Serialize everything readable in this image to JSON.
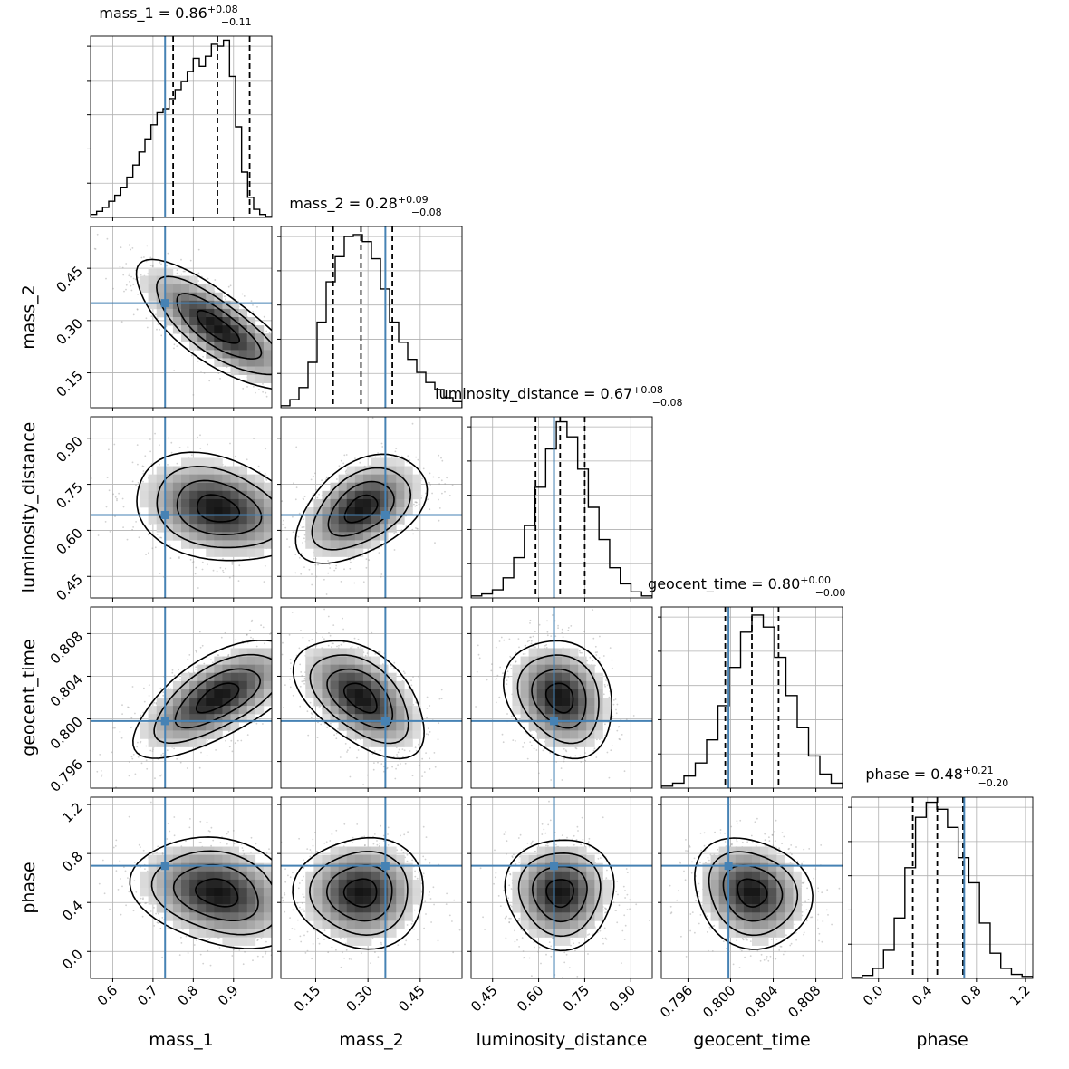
{
  "chart_data": {
    "type": "corner",
    "parameters": [
      {
        "name": "mass_1",
        "axis_label": "mass_1",
        "range": [
          0.545,
          0.995
        ],
        "ticks": [
          0.6,
          0.7,
          0.8,
          0.9
        ],
        "tick_labels": [
          "0.6",
          "0.7",
          "0.8",
          "0.9"
        ],
        "title": {
          "text": "mass_1 = 0.86",
          "sup": "+0.08",
          "sub": "−0.11"
        },
        "truth": 0.73,
        "quantiles": [
          0.75,
          0.86,
          0.94
        ],
        "hist_max": 180,
        "hist": [
          3,
          6,
          10,
          16,
          22,
          30,
          40,
          52,
          65,
          78,
          92,
          104,
          108,
          118,
          127,
          135,
          145,
          158,
          150,
          160,
          172,
          170,
          176,
          140,
          90,
          45,
          20,
          8,
          3,
          1
        ]
      },
      {
        "name": "mass_2",
        "axis_label": "mass_2",
        "range": [
          0.05,
          0.57
        ],
        "ticks": [
          0.15,
          0.3,
          0.45
        ],
        "tick_labels": [
          "0.15",
          "0.30",
          "0.45"
        ],
        "title": {
          "text": "mass_2 = 0.28",
          "sup": "+0.09",
          "sub": "−0.08"
        },
        "truth": 0.35,
        "quantiles": [
          0.2,
          0.28,
          0.37
        ],
        "hist_max": 180,
        "hist": [
          2,
          8,
          20,
          45,
          85,
          125,
          150,
          170,
          172,
          165,
          148,
          118,
          85,
          65,
          48,
          35,
          25,
          18,
          10,
          6
        ]
      },
      {
        "name": "luminosity_distance",
        "axis_label": "luminosity_distance",
        "range": [
          0.38,
          0.97
        ],
        "ticks": [
          0.45,
          0.6,
          0.75,
          0.9
        ],
        "tick_labels": [
          "0.45",
          "0.60",
          "0.75",
          "0.90"
        ],
        "title": {
          "text": "luminosity_distance = 0.67",
          "sup": "+0.08",
          "sub": "−0.08"
        },
        "truth": 0.65,
        "quantiles": [
          0.59,
          0.67,
          0.75
        ],
        "hist_max": 180,
        "hist": [
          2,
          4,
          8,
          20,
          40,
          72,
          110,
          148,
          175,
          160,
          128,
          90,
          58,
          30,
          14,
          6,
          2
        ]
      },
      {
        "name": "geocent_time",
        "axis_label": "geocent_time",
        "range": [
          0.7935,
          0.8105
        ],
        "ticks": [
          0.796,
          0.8,
          0.804,
          0.808
        ],
        "tick_labels": [
          "0.796",
          "0.800",
          "0.804",
          "0.808"
        ],
        "title": {
          "text": "geocent_time = 0.80",
          "sup": "+0.00",
          "sub": "−0.00"
        },
        "truth": 0.7998,
        "quantiles": [
          0.7995,
          0.802,
          0.8045
        ],
        "hist_max": 180,
        "hist": [
          2,
          5,
          12,
          25,
          48,
          82,
          120,
          155,
          172,
          160,
          130,
          92,
          60,
          32,
          14,
          5
        ]
      },
      {
        "name": "phase",
        "axis_label": "phase",
        "range": [
          -0.22,
          1.26
        ],
        "ticks": [
          0.0,
          0.4,
          0.8,
          1.2
        ],
        "tick_labels": [
          "0.0",
          "0.4",
          "0.8",
          "1.2"
        ],
        "title": {
          "text": "phase = 0.48",
          "sup": "+0.21",
          "sub": "−0.20"
        },
        "truth": 0.7,
        "quantiles": [
          0.28,
          0.48,
          0.69
        ],
        "hist_max": 180,
        "hist": [
          1,
          3,
          10,
          28,
          60,
          110,
          160,
          175,
          168,
          150,
          120,
          95,
          55,
          25,
          10,
          4,
          2
        ]
      }
    ],
    "correlations": [
      {
        "pair": [
          1,
          0
        ],
        "rho": -0.78
      },
      {
        "pair": [
          2,
          0
        ],
        "rho": -0.25
      },
      {
        "pair": [
          2,
          1
        ],
        "rho": 0.45
      },
      {
        "pair": [
          3,
          0
        ],
        "rho": 0.65
      },
      {
        "pair": [
          3,
          1
        ],
        "rho": -0.5
      },
      {
        "pair": [
          3,
          2
        ],
        "rho": -0.2
      },
      {
        "pair": [
          4,
          0
        ],
        "rho": -0.25
      },
      {
        "pair": [
          4,
          1
        ],
        "rho": 0.0
      },
      {
        "pair": [
          4,
          2
        ],
        "rho": 0.0
      },
      {
        "pair": [
          4,
          3
        ],
        "rho": -0.15
      }
    ],
    "grid": true,
    "truth_color": "#4682b4",
    "contour_color": "#000000",
    "quantile_line_style": "dashed"
  }
}
